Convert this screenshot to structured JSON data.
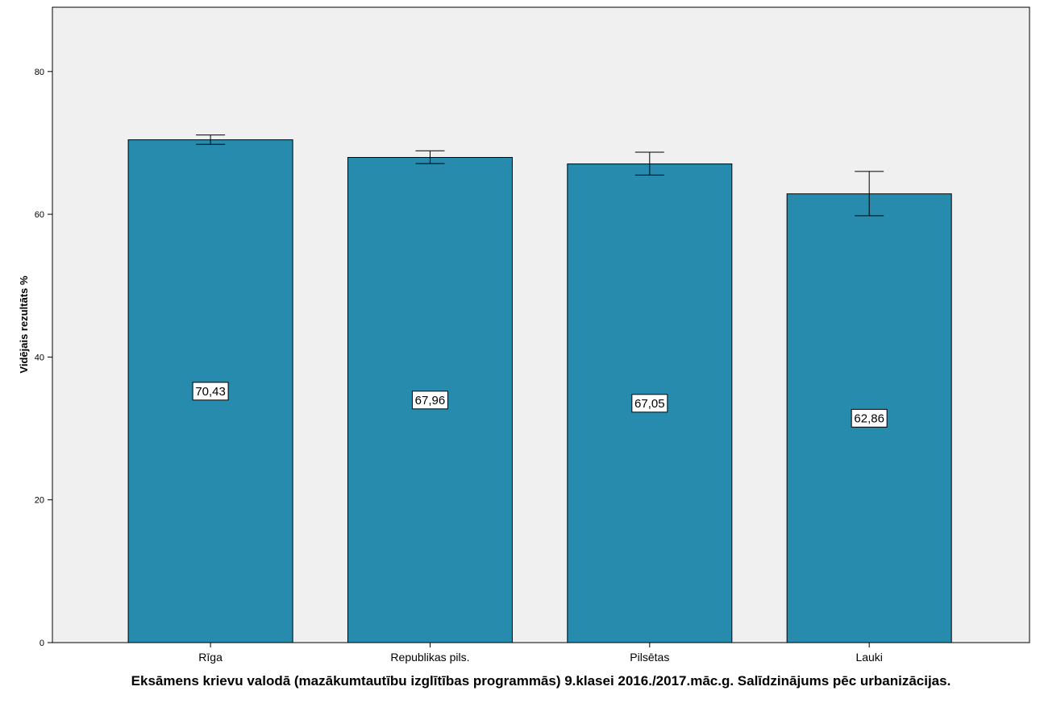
{
  "chart_data": {
    "type": "bar",
    "categories": [
      "Rīga",
      "Republikas pils.",
      "Pilsētas",
      "Lauki"
    ],
    "values": [
      70.43,
      67.96,
      67.05,
      62.86
    ],
    "value_labels": [
      "70,43",
      "67,96",
      "67,05",
      "62,86"
    ],
    "error_bars": [
      {
        "low": 69.8,
        "high": 71.1
      },
      {
        "low": 67.1,
        "high": 68.9
      },
      {
        "low": 65.5,
        "high": 68.7
      },
      {
        "low": 59.8,
        "high": 66.0
      }
    ],
    "title": "",
    "xlabel": "Eksāmens krievu valodā (mazākumtautību izglītības programmās) 9.klasei 2016./2017.māc.g. Salīdzinājums pēc urbanizācijas.",
    "ylabel": "Vidējais rezultāts %",
    "ylim": [
      0,
      89
    ],
    "yticks": [
      0,
      20,
      40,
      60,
      80
    ],
    "ytick_labels": [
      "0",
      "20",
      "40",
      "60",
      "80"
    ],
    "grid": false,
    "legend": "none",
    "colors": {
      "bar": "#268bad",
      "plot_background": "#f0f0f0"
    }
  }
}
